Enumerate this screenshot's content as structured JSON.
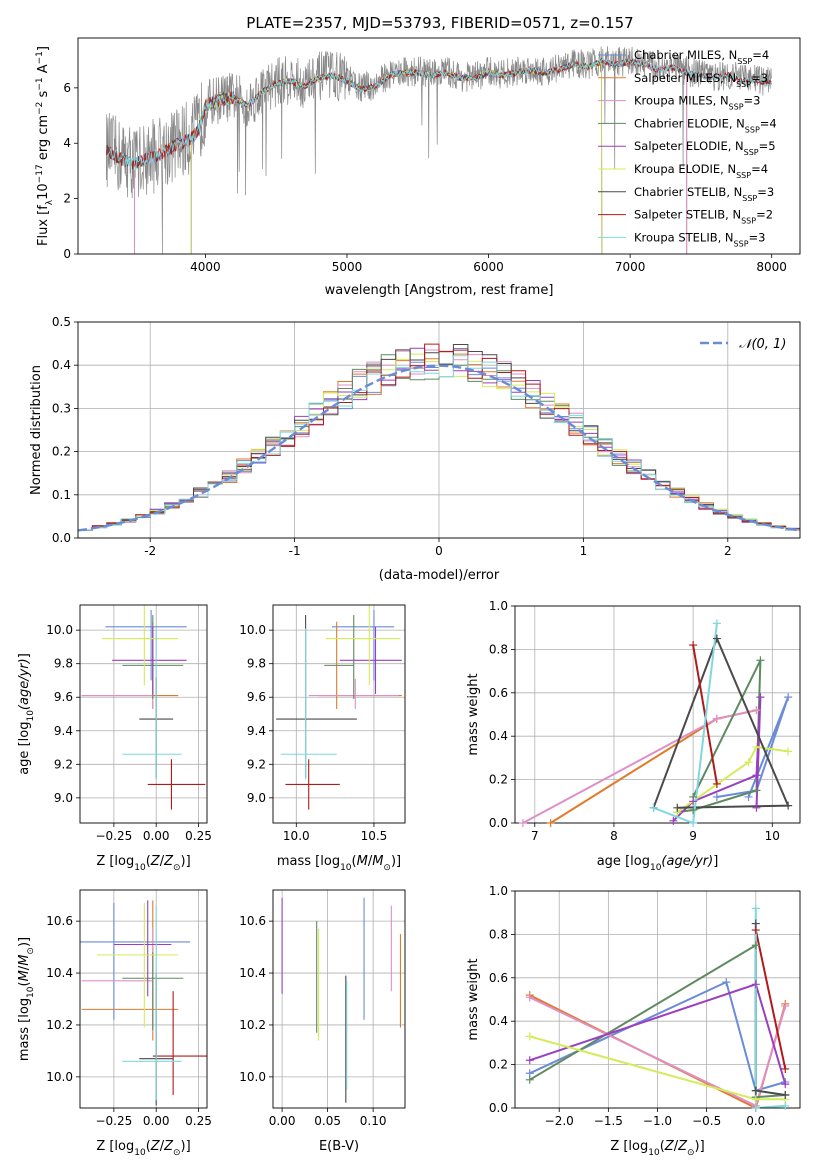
{
  "figure_title": "PLATE=2357, MJD=53793, FIBERID=0571, z=0.157",
  "colors": {
    "Chabrier MILES": "#6a8bd8",
    "Salpeter MILES": "#e07a2b",
    "Kroupa MILES": "#e08fc6",
    "Chabrier ELODIE": "#5f8a60",
    "Salpeter ELODIE": "#9a3fc0",
    "Kroupa ELODIE": "#d4ec5a",
    "Chabrier STELIB": "#4a4a4a",
    "Salpeter STELIB": "#b01a1a",
    "Kroupa STELIB": "#7fd8df",
    "data": "#888888",
    "gaussian": "#6a8bd8"
  },
  "chart_data": [
    {
      "id": "spectrum",
      "type": "line",
      "xlabel": "wavelength [Angstrom, rest frame]",
      "ylabel": "Flux [f_λ 10^-17 erg cm^-2 s^-1 A^-1]",
      "xlim": [
        3100,
        8200
      ],
      "ylim": [
        0,
        7.8
      ],
      "xticks": [
        4000,
        5000,
        6000,
        7000,
        8000
      ],
      "yticks": [
        0,
        2,
        4,
        6
      ],
      "grid": false,
      "legend_position": "upper-right",
      "legend": [
        {
          "label": "Chabrier MILES, N",
          "sub": "SSP",
          "suffix": "=4",
          "series": "Chabrier MILES"
        },
        {
          "label": "Salpeter MILES, N",
          "sub": "SSP",
          "suffix": "=3",
          "series": "Salpeter MILES"
        },
        {
          "label": "Kroupa MILES, N",
          "sub": "SSP",
          "suffix": "=3",
          "series": "Kroupa MILES"
        },
        {
          "label": "Chabrier ELODIE, N",
          "sub": "SSP",
          "suffix": "=4",
          "series": "Chabrier ELODIE"
        },
        {
          "label": "Salpeter ELODIE, N",
          "sub": "SSP",
          "suffix": "=5",
          "series": "Salpeter ELODIE"
        },
        {
          "label": "Kroupa ELODIE, N",
          "sub": "SSP",
          "suffix": "=4",
          "series": "Kroupa ELODIE"
        },
        {
          "label": "Chabrier STELIB, N",
          "sub": "SSP",
          "suffix": "=3",
          "series": "Chabrier STELIB"
        },
        {
          "label": "Salpeter STELIB, N",
          "sub": "SSP",
          "suffix": "=2",
          "series": "Salpeter STELIB"
        },
        {
          "label": "Kroupa STELIB, N",
          "sub": "SSP",
          "suffix": "=3",
          "series": "Kroupa STELIB"
        }
      ],
      "continuum": {
        "x": [
          3300,
          3400,
          3500,
          3600,
          3700,
          3800,
          3900,
          3950,
          4000,
          4100,
          4200,
          4300,
          4400,
          4500,
          4600,
          4700,
          4800,
          4900,
          5000,
          5100,
          5200,
          5300,
          5400,
          5500,
          5600,
          5700,
          5800,
          5900,
          6000,
          6100,
          6200,
          6300,
          6400,
          6500,
          6600,
          6700,
          6800,
          6900,
          7000,
          7100,
          7200,
          7300,
          7400,
          7500,
          7600,
          7700,
          7800,
          7900,
          8000
        ],
        "y": [
          3.8,
          3.5,
          3.3,
          3.5,
          3.7,
          4.0,
          4.2,
          4.5,
          5.4,
          5.6,
          5.7,
          5.4,
          5.9,
          6.2,
          6.3,
          6.1,
          6.4,
          6.5,
          6.3,
          6.0,
          6.1,
          6.5,
          6.6,
          6.6,
          6.5,
          6.6,
          6.4,
          6.4,
          6.6,
          6.5,
          6.6,
          6.7,
          6.6,
          6.7,
          6.9,
          6.8,
          7.0,
          6.9,
          7.0,
          6.9,
          6.7,
          6.8,
          6.6,
          6.5,
          6.4,
          6.5,
          6.3,
          6.3,
          6.2
        ]
      },
      "model_ranges": {
        "Chabrier MILES": [
          3500,
          7400
        ],
        "Salpeter MILES": [
          3500,
          7400
        ],
        "Kroupa MILES": [
          3500,
          7400
        ],
        "Chabrier ELODIE": [
          3900,
          6800
        ],
        "Salpeter ELODIE": [
          3900,
          6800
        ],
        "Kroupa ELODIE": [
          3900,
          6800
        ],
        "Chabrier STELIB": [
          3300,
          8000
        ],
        "Salpeter STELIB": [
          3300,
          8000
        ],
        "Kroupa STELIB": [
          3300,
          8000
        ]
      }
    },
    {
      "id": "residual-histogram",
      "type": "line",
      "xlabel": "(data-model)/error",
      "ylabel": "Normed distribution",
      "xlim": [
        -2.5,
        2.5
      ],
      "ylim": [
        0,
        0.5
      ],
      "xticks": [
        -2,
        -1,
        0,
        1,
        2
      ],
      "yticks": [
        0.0,
        0.1,
        0.2,
        0.3,
        0.4,
        0.5
      ],
      "grid": true,
      "legend_position": "upper-right",
      "gaussian_label": "𝒩(0, 1)",
      "bin_width": 0.1
    },
    {
      "id": "age-vs-metallicity",
      "type": "scatter",
      "xlabel_text": "Z [log",
      "ylabel_text": "age  [log",
      "xlim": [
        -0.45,
        0.3
      ],
      "ylim": [
        8.85,
        10.15
      ],
      "xticks": [
        -0.25,
        0.0,
        0.25
      ],
      "xtick_labels": [
        "−0.25",
        "0.00",
        "0.25"
      ],
      "yticks": [
        9.0,
        9.2,
        9.4,
        9.6,
        9.8,
        10.0
      ],
      "grid": true,
      "points": [
        {
          "series": "Chabrier MILES",
          "x": -0.03,
          "xerr": [
            0.27,
            0.21
          ],
          "y": 10.02,
          "yerr": [
            0.32,
            0.1
          ]
        },
        {
          "series": "Salpeter MILES",
          "x": -0.02,
          "xerr": [
            0.42,
            0.15
          ],
          "y": 9.61,
          "yerr": [
            0.08,
            0.44
          ]
        },
        {
          "series": "Kroupa MILES",
          "x": -0.02,
          "xerr": [
            0.42,
            0.0
          ],
          "y": 9.61,
          "yerr": [
            0.08,
            0.1
          ]
        },
        {
          "series": "Chabrier ELODIE",
          "x": -0.02,
          "xerr": [
            0.18,
            0.18
          ],
          "y": 9.79,
          "yerr": [
            0.2,
            0.3
          ]
        },
        {
          "series": "Salpeter ELODIE",
          "x": -0.02,
          "xerr": [
            0.24,
            0.2
          ],
          "y": 9.82,
          "yerr": [
            0.2,
            0.2
          ]
        },
        {
          "series": "Kroupa ELODIE",
          "x": -0.07,
          "xerr": [
            0.25,
            0.2
          ],
          "y": 9.95,
          "yerr": [
            0.28,
            0.2
          ]
        },
        {
          "series": "Chabrier STELIB",
          "x": 0.0,
          "xerr": [
            0.1,
            0.1
          ],
          "y": 9.47,
          "yerr": [
            0.35,
            0.25
          ]
        },
        {
          "series": "Salpeter STELIB",
          "x": 0.09,
          "xerr": [
            0.14,
            0.2
          ],
          "y": 9.08,
          "yerr": [
            0.15,
            0.15
          ]
        },
        {
          "series": "Kroupa STELIB",
          "x": 0.0,
          "xerr": [
            0.2,
            0.15
          ],
          "y": 9.26,
          "yerr": [
            0.15,
            0.75
          ]
        }
      ]
    },
    {
      "id": "age-vs-mass",
      "type": "scatter",
      "xlabel_text": "mass [log",
      "xlim": [
        9.85,
        10.7
      ],
      "ylim": [
        8.85,
        10.15
      ],
      "xticks": [
        10.0,
        10.5
      ],
      "xtick_labels": [
        "10.0",
        "10.5"
      ],
      "yticks": [
        9.0,
        9.2,
        9.4,
        9.6,
        9.8,
        10.0
      ],
      "grid": true,
      "points": [
        {
          "series": "Chabrier MILES",
          "x": 10.5,
          "xerr": [
            0.27,
            0.13
          ],
          "y": 10.02,
          "yerr": [
            0.32,
            0.1
          ]
        },
        {
          "series": "Salpeter MILES",
          "x": 10.26,
          "xerr": [
            0.12,
            0.42
          ],
          "y": 9.61,
          "yerr": [
            0.08,
            0.44
          ]
        },
        {
          "series": "Kroupa MILES",
          "x": 10.38,
          "xerr": [
            0.3,
            0.28
          ],
          "y": 9.61,
          "yerr": [
            0.08,
            0.1
          ]
        },
        {
          "series": "Chabrier ELODIE",
          "x": 10.37,
          "xerr": [
            0.19,
            0.0
          ],
          "y": 9.79,
          "yerr": [
            0.2,
            0.3
          ]
        },
        {
          "series": "Salpeter ELODIE",
          "x": 10.51,
          "xerr": [
            0.23,
            0.17
          ],
          "y": 9.82,
          "yerr": [
            0.2,
            0.2
          ]
        },
        {
          "series": "Kroupa ELODIE",
          "x": 10.47,
          "xerr": [
            0.28,
            0.2
          ],
          "y": 9.95,
          "yerr": [
            0.28,
            0.2
          ]
        },
        {
          "series": "Chabrier STELIB",
          "x": 10.06,
          "xerr": [
            0.19,
            0.33
          ],
          "y": 9.47,
          "yerr": [
            0.35,
            0.62
          ]
        },
        {
          "series": "Salpeter STELIB",
          "x": 10.08,
          "xerr": [
            0.15,
            0.2
          ],
          "y": 9.08,
          "yerr": [
            0.15,
            0.15
          ]
        },
        {
          "series": "Kroupa STELIB",
          "x": 10.06,
          "xerr": [
            0.16,
            0.2
          ],
          "y": 9.26,
          "yerr": [
            0.15,
            0.75
          ]
        }
      ]
    },
    {
      "id": "weight-vs-age",
      "type": "line",
      "xlabel_text": "age  [log",
      "ylabel": "mass weight",
      "xlim": [
        6.75,
        10.35
      ],
      "ylim": [
        0.0,
        1.0
      ],
      "xticks": [
        7,
        8,
        9,
        10
      ],
      "xtick_labels": [
        "7",
        "8",
        "9",
        "10"
      ],
      "yticks": [
        0.0,
        0.2,
        0.4,
        0.6,
        0.8,
        1.0
      ],
      "grid": true,
      "series": [
        {
          "name": "Chabrier MILES",
          "x": [
            9.3,
            9.8,
            10.2,
            9.7
          ],
          "y": [
            0.12,
            0.15,
            0.58,
            0.12
          ]
        },
        {
          "name": "Salpeter MILES",
          "x": [
            7.2,
            9.3,
            9.8
          ],
          "y": [
            0.0,
            0.48,
            0.52
          ]
        },
        {
          "name": "Kroupa MILES",
          "x": [
            6.85,
            9.3,
            9.8
          ],
          "y": [
            0.0,
            0.48,
            0.52
          ]
        },
        {
          "name": "Chabrier ELODIE",
          "x": [
            8.8,
            9.0,
            9.8,
            9.85,
            9.0
          ],
          "y": [
            0.05,
            0.06,
            0.15,
            0.75,
            0.12
          ]
        },
        {
          "name": "Salpeter ELODIE",
          "x": [
            8.75,
            9.0,
            9.8,
            9.85,
            9.8
          ],
          "y": [
            0.01,
            0.1,
            0.22,
            0.58,
            0.07
          ]
        },
        {
          "name": "Kroupa ELODIE",
          "x": [
            8.8,
            9.7,
            9.8,
            10.2
          ],
          "y": [
            0.05,
            0.28,
            0.35,
            0.33
          ]
        },
        {
          "name": "Chabrier STELIB",
          "x": [
            8.5,
            9.3,
            10.2,
            8.8
          ],
          "y": [
            0.07,
            0.85,
            0.08,
            0.07
          ]
        },
        {
          "name": "Salpeter STELIB",
          "x": [
            9.0,
            9.3
          ],
          "y": [
            0.82,
            0.18
          ]
        },
        {
          "name": "Kroupa STELIB",
          "x": [
            8.5,
            9.0,
            9.3
          ],
          "y": [
            0.07,
            0.0,
            0.92
          ]
        }
      ]
    },
    {
      "id": "mass-vs-metallicity",
      "type": "scatter",
      "xlabel_text": "Z [log",
      "ylabel_text": "mass [log",
      "xlim": [
        -0.45,
        0.3
      ],
      "ylim": [
        9.88,
        10.72
      ],
      "xticks": [
        -0.25,
        0.0,
        0.25
      ],
      "xtick_labels": [
        "−0.25",
        "0.00",
        "0.25"
      ],
      "yticks": [
        10.0,
        10.2,
        10.4,
        10.6
      ],
      "grid": true,
      "points": [
        {
          "series": "Chabrier MILES",
          "x": -0.25,
          "xerr": [
            0.2,
            0.45
          ],
          "y": 10.52,
          "yerr": [
            0.3,
            0.15
          ]
        },
        {
          "series": "Salpeter MILES",
          "x": -0.02,
          "xerr": [
            0.42,
            0.15
          ],
          "y": 10.26,
          "yerr": [
            0.12,
            0.42
          ]
        },
        {
          "series": "Kroupa MILES",
          "x": -0.02,
          "xerr": [
            0.42,
            0.0
          ],
          "y": 10.37,
          "yerr": [
            0.2,
            0.2
          ]
        },
        {
          "series": "Chabrier ELODIE",
          "x": -0.02,
          "xerr": [
            0.18,
            0.18
          ],
          "y": 10.38,
          "yerr": [
            0.2,
            0.1
          ]
        },
        {
          "series": "Salpeter ELODIE",
          "x": -0.05,
          "xerr": [
            0.2,
            0.14
          ],
          "y": 10.51,
          "yerr": [
            0.2,
            0.17
          ]
        },
        {
          "series": "Kroupa ELODIE",
          "x": -0.07,
          "xerr": [
            0.28,
            0.2
          ],
          "y": 10.47,
          "yerr": [
            0.28,
            0.2
          ]
        },
        {
          "series": "Chabrier STELIB",
          "x": 0.0,
          "xerr": [
            0.1,
            0.1
          ],
          "y": 10.07,
          "yerr": [
            0.18,
            0.33
          ]
        },
        {
          "series": "Salpeter STELIB",
          "x": 0.1,
          "xerr": [
            0.12,
            0.2
          ],
          "y": 10.08,
          "yerr": [
            0.15,
            0.25
          ]
        },
        {
          "series": "Kroupa STELIB",
          "x": 0.0,
          "xerr": [
            0.2,
            0.15
          ],
          "y": 10.06,
          "yerr": [
            0.15,
            0.6
          ]
        }
      ]
    },
    {
      "id": "mass-vs-extinction",
      "type": "scatter",
      "xlabel": "E(B-V)",
      "xlim": [
        -0.01,
        0.135
      ],
      "ylim": [
        9.88,
        10.72
      ],
      "xticks": [
        0.0,
        0.05,
        0.1
      ],
      "xtick_labels": [
        "0.00",
        "0.05",
        "0.10"
      ],
      "yticks": [
        10.0,
        10.2,
        10.4,
        10.6
      ],
      "grid": true,
      "points": [
        {
          "series": "Salpeter ELODIE",
          "x": 0.0,
          "y1": 10.32,
          "y2": 10.69
        },
        {
          "series": "Chabrier ELODIE",
          "x": 0.038,
          "y1": 10.17,
          "y2": 10.6
        },
        {
          "series": "Kroupa ELODIE",
          "x": 0.04,
          "y1": 10.14,
          "y2": 10.57
        },
        {
          "series": "Chabrier STELIB",
          "x": 0.07,
          "y1": 9.9,
          "y2": 10.39
        },
        {
          "series": "Kroupa STELIB",
          "x": 0.071,
          "y1": 9.95,
          "y2": 10.37
        },
        {
          "series": "Chabrier MILES",
          "x": 0.09,
          "y1": 10.22,
          "y2": 10.69
        },
        {
          "series": "Kroupa MILES",
          "x": 0.12,
          "y1": 10.33,
          "y2": 10.66
        },
        {
          "series": "Salpeter MILES",
          "x": 0.13,
          "y1": 10.19,
          "y2": 10.55
        }
      ]
    },
    {
      "id": "weight-vs-metallicity",
      "type": "line",
      "xlabel_text": "Z [log",
      "ylabel": "mass weight",
      "xlim": [
        -2.45,
        0.45
      ],
      "ylim": [
        0.0,
        1.0
      ],
      "xticks": [
        -2.0,
        -1.5,
        -1.0,
        -0.5,
        0.0
      ],
      "xtick_labels": [
        "−2.0",
        "−1.5",
        "−1.0",
        "−0.5",
        "0.0"
      ],
      "yticks": [
        0.0,
        0.2,
        0.4,
        0.6,
        0.8,
        1.0
      ],
      "grid": true,
      "series": [
        {
          "name": "Chabrier MILES",
          "x": [
            -2.3,
            -0.3,
            0.0,
            0.3
          ],
          "y": [
            0.16,
            0.58,
            0.08,
            0.12
          ]
        },
        {
          "name": "Salpeter MILES",
          "x": [
            -2.3,
            0.0,
            0.3
          ],
          "y": [
            0.52,
            0.0,
            0.48
          ]
        },
        {
          "name": "Kroupa MILES",
          "x": [
            -2.3,
            0.0,
            0.3
          ],
          "y": [
            0.51,
            0.01,
            0.47
          ]
        },
        {
          "name": "Chabrier ELODIE",
          "x": [
            -2.3,
            0.0,
            0.0,
            0.3
          ],
          "y": [
            0.13,
            0.75,
            0.05,
            0.06
          ]
        },
        {
          "name": "Salpeter ELODIE",
          "x": [
            -2.3,
            0.0,
            0.3
          ],
          "y": [
            0.22,
            0.57,
            0.11
          ]
        },
        {
          "name": "Kroupa ELODIE",
          "x": [
            -2.3,
            0.0,
            0.3
          ],
          "y": [
            0.33,
            0.04,
            0.04
          ]
        },
        {
          "name": "Chabrier STELIB",
          "x": [
            0.0,
            0.0,
            0.3
          ],
          "y": [
            0.85,
            0.08,
            0.06
          ]
        },
        {
          "name": "Salpeter STELIB",
          "x": [
            0.0,
            0.3
          ],
          "y": [
            0.82,
            0.18
          ]
        },
        {
          "name": "Kroupa STELIB",
          "x": [
            0.0,
            0.0,
            0.3
          ],
          "y": [
            0.92,
            0.0,
            0.01
          ]
        }
      ]
    }
  ]
}
